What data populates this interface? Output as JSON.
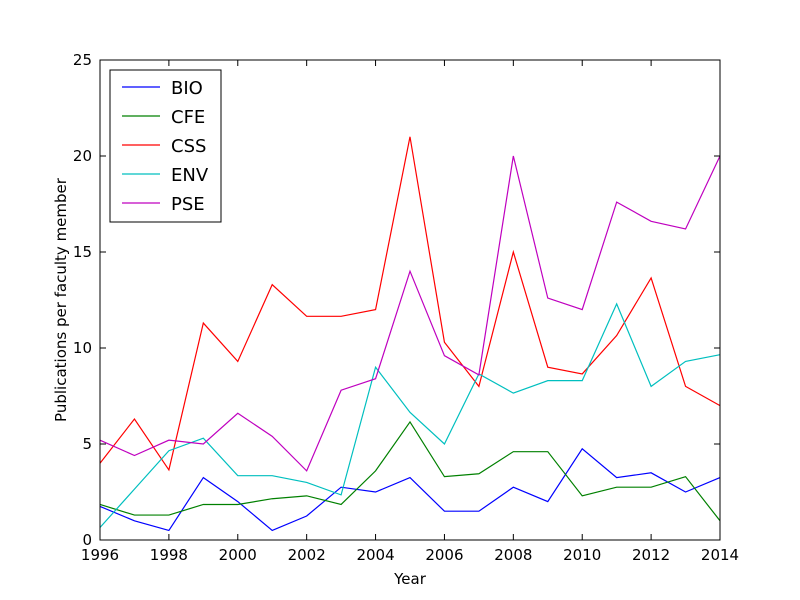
{
  "chart_data": {
    "type": "line",
    "xlabel": "Year",
    "ylabel": "Publications per faculty member",
    "xlim": [
      1996,
      2014
    ],
    "ylim": [
      0,
      25
    ],
    "x_ticks": [
      1996,
      1998,
      2000,
      2002,
      2004,
      2006,
      2008,
      2010,
      2012,
      2014
    ],
    "y_ticks": [
      0,
      5,
      10,
      15,
      20,
      25
    ],
    "grid": false,
    "legend_position": "top-left",
    "x": [
      1996,
      1997,
      1998,
      1999,
      2000,
      2001,
      2002,
      2003,
      2004,
      2005,
      2006,
      2007,
      2008,
      2009,
      2010,
      2011,
      2012,
      2013,
      2014
    ],
    "series": [
      {
        "name": "BIO",
        "color": "#0000ff",
        "values": [
          1.75,
          1.0,
          0.5,
          3.25,
          2.0,
          0.5,
          1.25,
          2.75,
          2.5,
          3.25,
          1.5,
          1.5,
          2.75,
          2.0,
          4.75,
          3.25,
          3.5,
          2.5,
          3.25
        ]
      },
      {
        "name": "CFE",
        "color": "#008000",
        "values": [
          1.85,
          1.3,
          1.3,
          1.85,
          1.85,
          2.15,
          2.3,
          1.85,
          3.6,
          6.15,
          3.3,
          3.45,
          4.6,
          4.6,
          2.3,
          2.75,
          2.75,
          3.3,
          1.0
        ]
      },
      {
        "name": "CSS",
        "color": "#ff0000",
        "values": [
          4.0,
          6.3,
          3.65,
          11.3,
          9.3,
          13.3,
          11.65,
          11.65,
          12.0,
          21.0,
          10.3,
          8.0,
          15.0,
          9.0,
          8.65,
          10.65,
          13.65,
          8.0,
          7.0
        ]
      },
      {
        "name": "ENV",
        "color": "#00bfbf",
        "values": [
          0.65,
          2.65,
          4.65,
          5.3,
          3.35,
          3.35,
          3.0,
          2.35,
          9.0,
          6.65,
          5.0,
          8.65,
          7.65,
          8.3,
          8.3,
          12.3,
          8.0,
          9.3,
          9.65
        ]
      },
      {
        "name": "PSE",
        "color": "#bf00bf",
        "values": [
          5.2,
          4.4,
          5.2,
          5.0,
          6.6,
          5.4,
          3.6,
          7.8,
          8.4,
          14.0,
          9.6,
          8.6,
          20.0,
          12.6,
          12.0,
          17.6,
          16.6,
          16.2,
          20.0
        ]
      }
    ]
  }
}
